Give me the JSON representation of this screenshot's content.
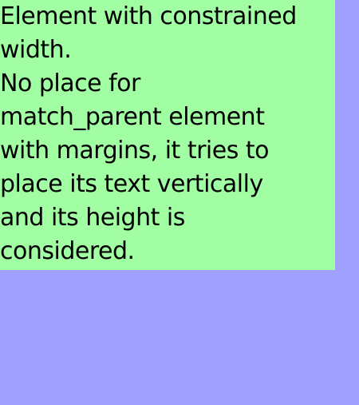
{
  "colors": {
    "background": "#a0a0ff",
    "box": "#a2fea2",
    "text": "#000000"
  },
  "box": {
    "lines": [
      "Element with constrained",
      "width.",
      "No place for",
      "match_parent element",
      "with margins, it tries to",
      "place its text vertically",
      "and its height is",
      "considered."
    ]
  }
}
